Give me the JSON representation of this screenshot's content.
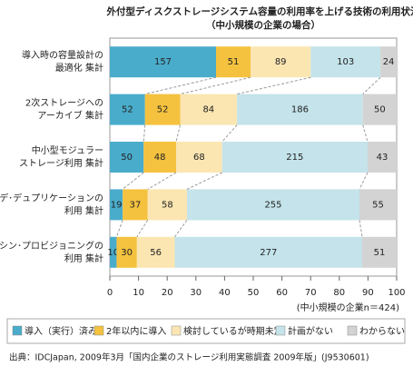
{
  "chart_data": {
    "type": "stacked_percent_bar",
    "orientation": "horizontal",
    "title": "外付型ディスクストレージシステム容量の利用率を上げる技術の利用状況",
    "subtitle": "（中小規模の企業の場合）",
    "categories": [
      [
        "導入時の容量設計の",
        "最適化 集計"
      ],
      [
        "2次ストレージへの",
        "アーカイブ 集計"
      ],
      [
        "中小型モジュラー",
        "ストレージ利用 集計"
      ],
      [
        "デ･デュプリケーションの",
        "利用 集計"
      ],
      [
        "シン･プロビジョニングの",
        "利用 集計"
      ]
    ],
    "series": [
      {
        "name": "導入（実行）済み",
        "color": "#4aaccb",
        "values": [
          157,
          52,
          50,
          19,
          10
        ]
      },
      {
        "name": "2年以内に導入",
        "color": "#f4c23f",
        "values": [
          51,
          52,
          48,
          37,
          30
        ]
      },
      {
        "name": "検討しているが時期未定",
        "color": "#fbe6b2",
        "values": [
          89,
          84,
          68,
          58,
          56
        ]
      },
      {
        "name": "計画がない",
        "color": "#c4e3ea",
        "values": [
          103,
          186,
          215,
          255,
          277
        ]
      },
      {
        "name": "わからない",
        "color": "#d3d3d3",
        "values": [
          24,
          50,
          43,
          55,
          51
        ]
      }
    ],
    "xlim": [
      0,
      100
    ],
    "xticks": [
      0,
      10,
      20,
      30,
      40,
      50,
      60,
      70,
      80,
      90,
      100
    ],
    "note": "(中小規模の企業n＝424)",
    "source": "出典：IDCJapan, 2009年3月「国内企業のストレージ利用実態調査 2009年版」(J9530601)"
  }
}
